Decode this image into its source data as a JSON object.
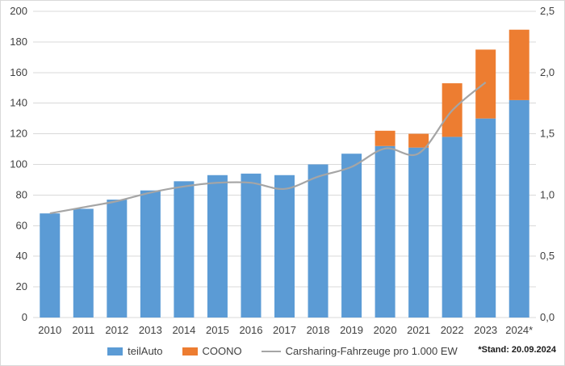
{
  "chart_data": {
    "type": "bar",
    "subtype": "stacked-bars-with-secondary-axis-line",
    "title": "",
    "xlabel": "",
    "ylabel": "",
    "categories": [
      "2010",
      "2011",
      "2012",
      "2013",
      "2014",
      "2015",
      "2016",
      "2017",
      "2018",
      "2019",
      "2020",
      "2021",
      "2022",
      "2023",
      "2024*"
    ],
    "series": [
      {
        "name": "teilAuto",
        "type": "bar",
        "stack": true,
        "axis": "left",
        "color": "#5B9BD5",
        "values": [
          68,
          71,
          77,
          83,
          89,
          93,
          94,
          93,
          100,
          107,
          112,
          111,
          118,
          130,
          142
        ]
      },
      {
        "name": "COONO",
        "type": "bar",
        "stack": true,
        "axis": "left",
        "color": "#ED7D31",
        "values": [
          0,
          0,
          0,
          0,
          0,
          0,
          0,
          0,
          0,
          0,
          10,
          9,
          35,
          45,
          46
        ]
      },
      {
        "name": "Carsharing-Fahrzeuge pro 1.000 EW",
        "type": "line",
        "axis": "right",
        "color": "#A5A5A5",
        "smooth": true,
        "values": [
          0.85,
          0.9,
          0.95,
          1.02,
          1.07,
          1.1,
          1.1,
          1.05,
          1.15,
          1.23,
          1.38,
          1.34,
          1.69,
          1.92,
          null
        ]
      }
    ],
    "left_axis": {
      "min": 0,
      "max": 200,
      "step": 20,
      "tick_labels": [
        "0",
        "20",
        "40",
        "60",
        "80",
        "100",
        "120",
        "140",
        "160",
        "180",
        "200"
      ]
    },
    "right_axis": {
      "min": 0,
      "max": 2.5,
      "step": 0.5,
      "tick_labels": [
        "0,0",
        "0,5",
        "1,0",
        "1,5",
        "2,0",
        "2,5"
      ]
    },
    "grid": true,
    "legend_position": "bottom",
    "footnote": "*Stand: 20.09.2024",
    "colors": {
      "grid": "#D9D9D9",
      "text": "#404040",
      "border": "#D9D9D9",
      "background": "#FFFFFF"
    }
  }
}
